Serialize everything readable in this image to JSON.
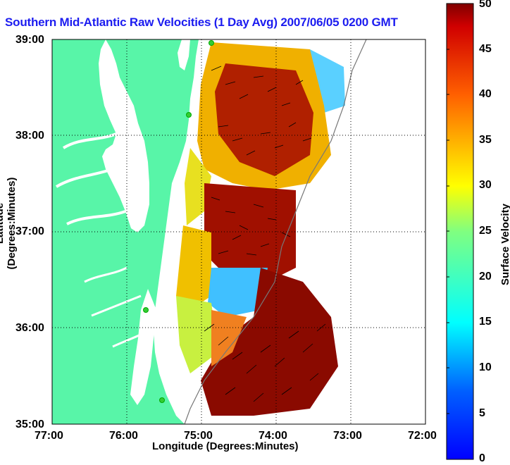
{
  "title": "Southern Mid-Atlantic Raw Velocities (1 Day Avg) 2007/06/05 0200 GMT",
  "map": {
    "xlabel": "Longitude (Degrees:Minutes)",
    "ylabel": "Latitude (Degrees:Minutes)",
    "lon_range": [
      -77,
      -72
    ],
    "lat_range": [
      35,
      39
    ],
    "x_ticks": [
      "77:00",
      "76:00",
      "75:00",
      "74:00",
      "73:00",
      "72:00"
    ],
    "y_ticks": [
      "39:00",
      "38:00",
      "37:00",
      "36:00",
      "35:00"
    ],
    "grid": "dotted",
    "land_color": "#58f5a8",
    "water_color": "#ffffff",
    "station_color": "#33cc33"
  },
  "colorbar": {
    "label": "Surface Velocity (cm/s)",
    "min": 0,
    "max": 50,
    "ticks": [
      "0",
      "5",
      "10",
      "15",
      "20",
      "25",
      "30",
      "35",
      "40",
      "45",
      "50"
    ],
    "colormap": "jet"
  }
}
